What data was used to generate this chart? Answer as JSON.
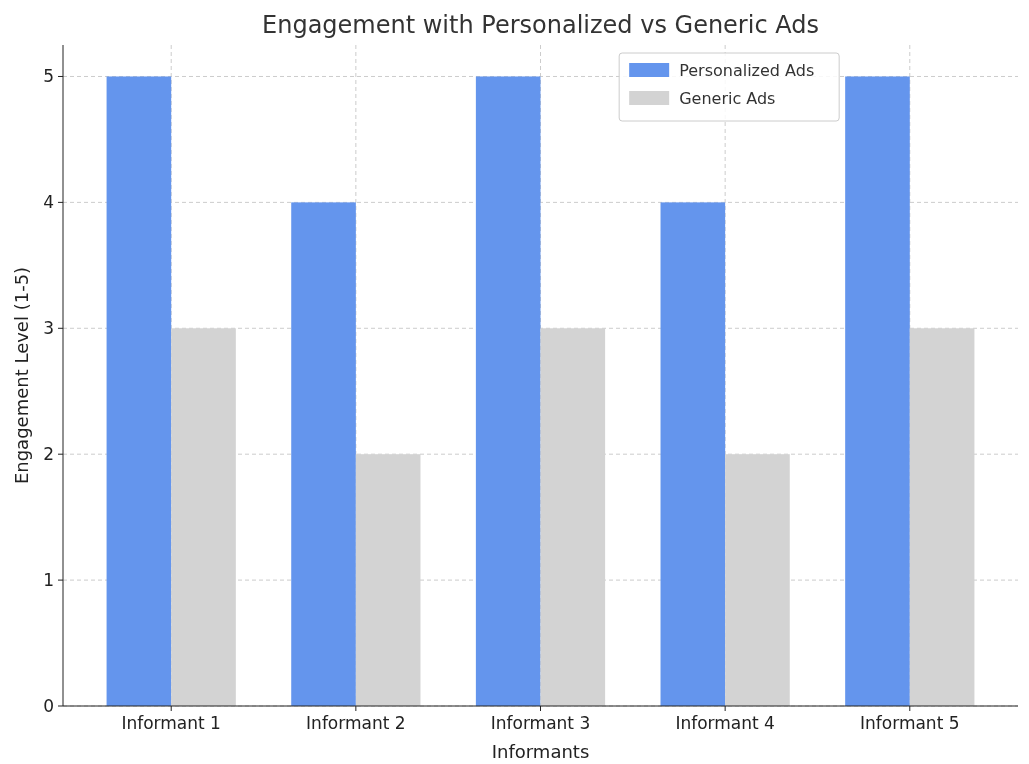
{
  "chart_data": {
    "type": "bar",
    "title": "Engagement with Personalized vs Generic Ads",
    "xlabel": "Informants",
    "ylabel": "Engagement Level (1-5)",
    "categories": [
      "Informant 1",
      "Informant 2",
      "Informant 3",
      "Informant 4",
      "Informant 5"
    ],
    "series": [
      {
        "name": "Personalized Ads",
        "color": "#6495ed",
        "values": [
          5,
          4,
          5,
          4,
          5
        ]
      },
      {
        "name": "Generic Ads",
        "color": "#d3d3d3",
        "values": [
          3,
          2,
          3,
          2,
          3
        ]
      }
    ],
    "ylim": [
      0,
      5.25
    ],
    "yticks": [
      0,
      1,
      2,
      3,
      4,
      5
    ],
    "grid": true,
    "legend": "top right"
  }
}
